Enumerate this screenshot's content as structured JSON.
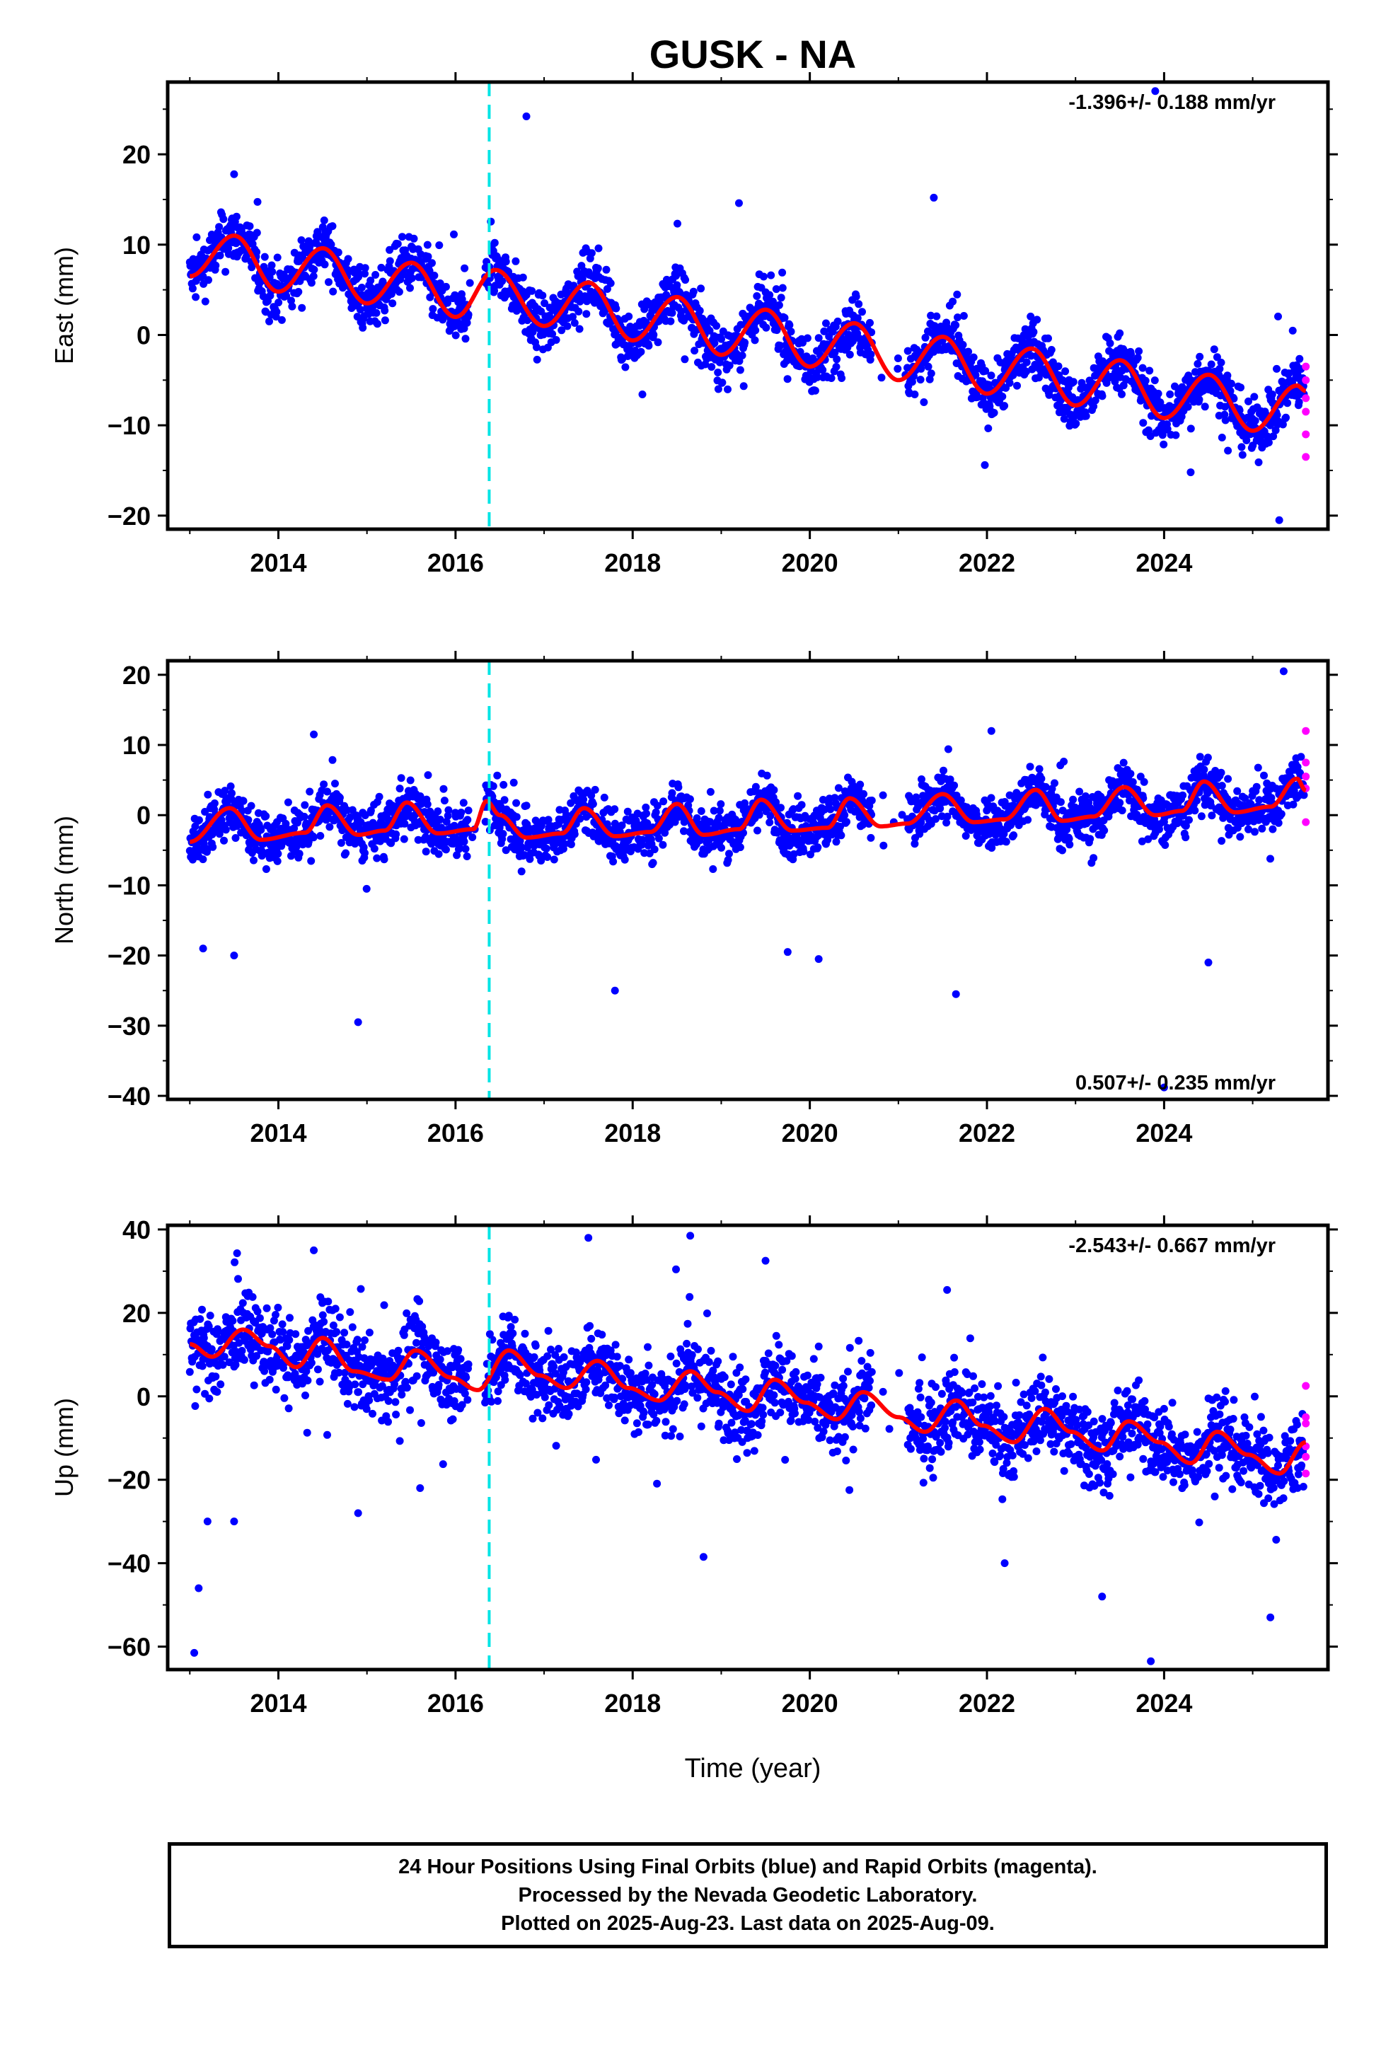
{
  "chart_data": {
    "title": "GUSK - NA",
    "type": "scatter",
    "xlabel": "Time (year)",
    "xlim": [
      2012.75,
      2025.85
    ],
    "xticks": [
      "2014",
      "2016",
      "2018",
      "2020",
      "2022",
      "2024"
    ],
    "offset_line_year": 2016.38,
    "colors": {
      "final_orbits": "#0000ff",
      "rapid_orbits": "#ff00ff",
      "model": "#ff0000",
      "offset_line": "#00e5e5"
    },
    "panels": [
      {
        "ylabel": "East (mm)",
        "ylim": [
          -21.5,
          28
        ],
        "yticks": [
          "20",
          "10",
          "0",
          "−10",
          "−20"
        ],
        "rate_label": "-1.396+/- 0.188 mm/yr",
        "rate_position": "top-right",
        "trend_mm_per_yr": -1.396,
        "model_points": [
          [
            2013.0,
            6.5
          ],
          [
            2013.5,
            11.0
          ],
          [
            2014.0,
            4.8
          ],
          [
            2014.5,
            9.6
          ],
          [
            2015.0,
            3.5
          ],
          [
            2015.5,
            8.0
          ],
          [
            2016.0,
            2.0
          ],
          [
            2016.45,
            7.2
          ],
          [
            2017.0,
            1.0
          ],
          [
            2017.5,
            5.8
          ],
          [
            2018.0,
            -0.6
          ],
          [
            2018.5,
            4.2
          ],
          [
            2019.0,
            -2.2
          ],
          [
            2019.5,
            2.8
          ],
          [
            2020.0,
            -3.5
          ],
          [
            2020.5,
            1.3
          ],
          [
            2021.0,
            -5.0
          ],
          [
            2021.5,
            -0.2
          ],
          [
            2022.0,
            -6.5
          ],
          [
            2022.5,
            -1.5
          ],
          [
            2023.0,
            -7.8
          ],
          [
            2023.5,
            -2.8
          ],
          [
            2024.0,
            -9.2
          ],
          [
            2024.5,
            -4.4
          ],
          [
            2025.0,
            -10.6
          ],
          [
            2025.5,
            -5.6
          ],
          [
            2025.6,
            -6.2
          ]
        ],
        "outliers": [
          [
            2013.5,
            17.8
          ],
          [
            2016.8,
            24.2
          ],
          [
            2019.2,
            14.6
          ],
          [
            2021.4,
            15.2
          ],
          [
            2023.9,
            27
          ],
          [
            2025.3,
            -20.5
          ],
          [
            2024.3,
            -15.2
          ]
        ],
        "rapid_points": [
          [
            2025.6,
            -3.5
          ],
          [
            2025.6,
            -5.0
          ],
          [
            2025.6,
            -7.0
          ],
          [
            2025.6,
            -8.5
          ],
          [
            2025.6,
            -11.0
          ],
          [
            2025.6,
            -13.5
          ]
        ]
      },
      {
        "ylabel": "North (mm)",
        "ylim": [
          -40.5,
          22
        ],
        "yticks": [
          "20",
          "10",
          "0",
          "−10",
          "−20",
          "−30",
          "−40"
        ],
        "rate_label": "0.507+/- 0.235 mm/yr",
        "rate_position": "bottom-right",
        "trend_mm_per_yr": 0.507,
        "model_points": [
          [
            2013.0,
            -3.8
          ],
          [
            2013.45,
            1.0
          ],
          [
            2013.8,
            -3.5
          ],
          [
            2014.3,
            -2.5
          ],
          [
            2014.55,
            1.4
          ],
          [
            2014.9,
            -2.8
          ],
          [
            2015.2,
            -2.2
          ],
          [
            2015.45,
            1.8
          ],
          [
            2015.8,
            -2.6
          ],
          [
            2016.2,
            -2.0
          ],
          [
            2016.35,
            2.0
          ],
          [
            2016.5,
            0.0
          ],
          [
            2016.8,
            -3.2
          ],
          [
            2017.2,
            -2.6
          ],
          [
            2017.45,
            1.0
          ],
          [
            2017.8,
            -3.0
          ],
          [
            2018.2,
            -2.4
          ],
          [
            2018.5,
            1.6
          ],
          [
            2018.8,
            -2.8
          ],
          [
            2019.2,
            -2.0
          ],
          [
            2019.45,
            2.2
          ],
          [
            2019.8,
            -2.2
          ],
          [
            2020.2,
            -1.8
          ],
          [
            2020.45,
            2.4
          ],
          [
            2020.8,
            -1.6
          ],
          [
            2021.1,
            -1.2
          ],
          [
            2021.5,
            3.0
          ],
          [
            2021.85,
            -1.0
          ],
          [
            2022.2,
            -0.6
          ],
          [
            2022.55,
            3.6
          ],
          [
            2022.85,
            -0.8
          ],
          [
            2023.2,
            -0.2
          ],
          [
            2023.55,
            4.0
          ],
          [
            2023.9,
            0.0
          ],
          [
            2024.2,
            0.6
          ],
          [
            2024.45,
            4.8
          ],
          [
            2024.8,
            0.4
          ],
          [
            2025.2,
            1.2
          ],
          [
            2025.5,
            5.2
          ],
          [
            2025.6,
            3.5
          ]
        ],
        "outliers": [
          [
            2013.15,
            -19.0
          ],
          [
            2013.5,
            -20.0
          ],
          [
            2014.4,
            11.5
          ],
          [
            2014.9,
            -29.5
          ],
          [
            2017.8,
            -25.0
          ],
          [
            2019.75,
            -19.5
          ],
          [
            2020.1,
            -20.5
          ],
          [
            2021.65,
            -25.5
          ],
          [
            2022.05,
            12.0
          ],
          [
            2024.5,
            -21.0
          ],
          [
            2025.35,
            20.5
          ],
          [
            2024.0,
            -38.8
          ]
        ],
        "rapid_points": [
          [
            2025.6,
            12.0
          ],
          [
            2025.6,
            7.5
          ],
          [
            2025.6,
            5.5
          ],
          [
            2025.6,
            3.8
          ],
          [
            2025.6,
            -1.0
          ]
        ]
      },
      {
        "ylabel": "Up (mm)",
        "ylim": [
          -65.5,
          41
        ],
        "yticks": [
          "40",
          "20",
          "0",
          "−20",
          "−40",
          "−60"
        ],
        "rate_label": "-2.543+/- 0.667 mm/yr",
        "rate_position": "top-right",
        "trend_mm_per_yr": -2.543,
        "model_points": [
          [
            2013.0,
            12.5
          ],
          [
            2013.25,
            9.5
          ],
          [
            2013.6,
            16.0
          ],
          [
            2013.9,
            12.0
          ],
          [
            2014.2,
            7.0
          ],
          [
            2014.5,
            14.0
          ],
          [
            2014.85,
            6.0
          ],
          [
            2015.25,
            4.0
          ],
          [
            2015.55,
            11.0
          ],
          [
            2015.95,
            4.5
          ],
          [
            2016.25,
            1.5
          ],
          [
            2016.6,
            11.0
          ],
          [
            2016.95,
            5.0
          ],
          [
            2017.25,
            2.0
          ],
          [
            2017.6,
            8.5
          ],
          [
            2017.95,
            2.0
          ],
          [
            2018.3,
            -1.0
          ],
          [
            2018.65,
            6.0
          ],
          [
            2018.95,
            1.0
          ],
          [
            2019.3,
            -3.5
          ],
          [
            2019.6,
            4.0
          ],
          [
            2019.95,
            -1.5
          ],
          [
            2020.3,
            -5.5
          ],
          [
            2020.6,
            1.0
          ],
          [
            2021.0,
            -5.0
          ],
          [
            2021.3,
            -8.5
          ],
          [
            2021.65,
            -1.0
          ],
          [
            2021.95,
            -7.0
          ],
          [
            2022.3,
            -11.0
          ],
          [
            2022.65,
            -3.0
          ],
          [
            2022.95,
            -8.5
          ],
          [
            2023.3,
            -13.0
          ],
          [
            2023.6,
            -6.0
          ],
          [
            2023.95,
            -11.0
          ],
          [
            2024.3,
            -16.0
          ],
          [
            2024.6,
            -8.5
          ],
          [
            2024.95,
            -14.0
          ],
          [
            2025.3,
            -18.5
          ],
          [
            2025.6,
            -11.0
          ]
        ],
        "outliers": [
          [
            2013.05,
            -61.5
          ],
          [
            2013.1,
            -46.0
          ],
          [
            2013.2,
            -30.0
          ],
          [
            2013.5,
            -30.0
          ],
          [
            2014.4,
            35.0
          ],
          [
            2014.9,
            -28.0
          ],
          [
            2015.6,
            -22.0
          ],
          [
            2017.5,
            38.0
          ],
          [
            2018.65,
            38.5
          ],
          [
            2018.8,
            -38.5
          ],
          [
            2019.5,
            32.5
          ],
          [
            2021.55,
            25.5
          ],
          [
            2022.2,
            -40.0
          ],
          [
            2023.3,
            -48.0
          ],
          [
            2023.85,
            -63.5
          ],
          [
            2025.2,
            -53.0
          ]
        ],
        "rapid_points": [
          [
            2025.6,
            2.5
          ],
          [
            2025.6,
            -5.0
          ],
          [
            2025.6,
            -6.5
          ],
          [
            2025.6,
            -12.0
          ],
          [
            2025.6,
            -14.5
          ],
          [
            2025.6,
            -18.5
          ]
        ]
      }
    ],
    "data_gaps": [
      [
        2016.15,
        2016.33
      ],
      [
        2020.7,
        2021.1
      ]
    ]
  },
  "footer": {
    "line1": "24 Hour Positions Using Final Orbits (blue) and Rapid Orbits (magenta).",
    "line2": "Processed by the Nevada Geodetic Laboratory.",
    "line3": "Plotted on 2025-Aug-23. Last data on 2025-Aug-09."
  }
}
